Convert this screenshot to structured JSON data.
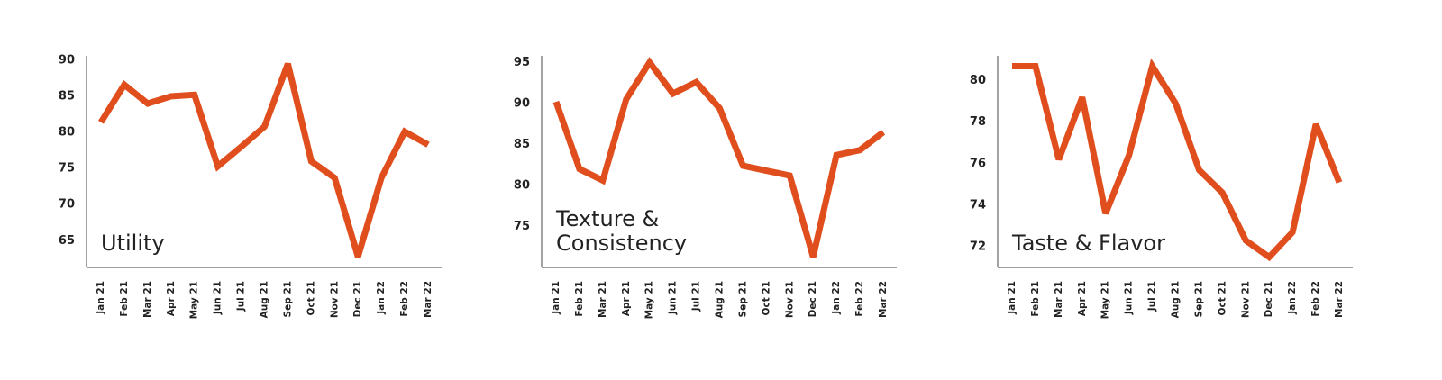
{
  "chart_data": [
    {
      "type": "line",
      "title": "Utility",
      "categories": [
        "Jan 21",
        "Feb 21",
        "Mar 21",
        "Apr 21",
        "May 21",
        "Jun 21",
        "Jul 21",
        "Aug 21",
        "Sep 21",
        "Oct 21",
        "Nov 21",
        "Dec 21",
        "Jan 22",
        "Feb 22",
        "Mar 22"
      ],
      "values": [
        81.4,
        86.6,
        84,
        85,
        85.2,
        75.3,
        78,
        80.8,
        89.5,
        76,
        73.7,
        62.8,
        73.7,
        80.1,
        78.3
      ],
      "color": "#e04e1e",
      "ylim": [
        61.3,
        90.6
      ],
      "yticks": [
        65,
        70,
        75,
        80,
        85,
        90
      ]
    },
    {
      "type": "line",
      "title": "Texture & Consistency",
      "categories": [
        "Jan 21",
        "Feb 21",
        "Mar 21",
        "Apr 21",
        "May 21",
        "Jun 21",
        "Jul 21",
        "Aug 21",
        "Sep 21",
        "Oct 21",
        "Nov 21",
        "Dec 21",
        "Jan 22",
        "Feb 22",
        "Mar 22"
      ],
      "values": [
        90.2,
        82,
        80.6,
        90.5,
        95,
        91.2,
        92.6,
        89.4,
        82.4,
        81.8,
        81.2,
        71.3,
        83.7,
        84.3,
        86.5
      ],
      "color": "#e04e1e",
      "ylim": [
        70,
        95.8
      ],
      "yticks": [
        75,
        80,
        85,
        90,
        95
      ]
    },
    {
      "type": "line",
      "title": "Taste & Flavor",
      "categories": [
        "Jan 21",
        "Feb 21",
        "Mar 21",
        "Apr 21",
        "May 21",
        "Jun 21",
        "Jul 21",
        "Aug 21",
        "Sep 21",
        "Oct 21",
        "Nov 21",
        "Dec 21",
        "Jan 22",
        "Feb 22",
        "Mar 22"
      ],
      "values": [
        80.7,
        80.7,
        76.2,
        79.2,
        73.6,
        76.4,
        80.7,
        78.9,
        75.7,
        74.6,
        72.3,
        71.5,
        72.7,
        77.9,
        75.1
      ],
      "color": "#e04e1e",
      "ylim": [
        71,
        81.2
      ],
      "yticks": [
        72,
        74,
        76,
        78,
        80
      ]
    }
  ]
}
